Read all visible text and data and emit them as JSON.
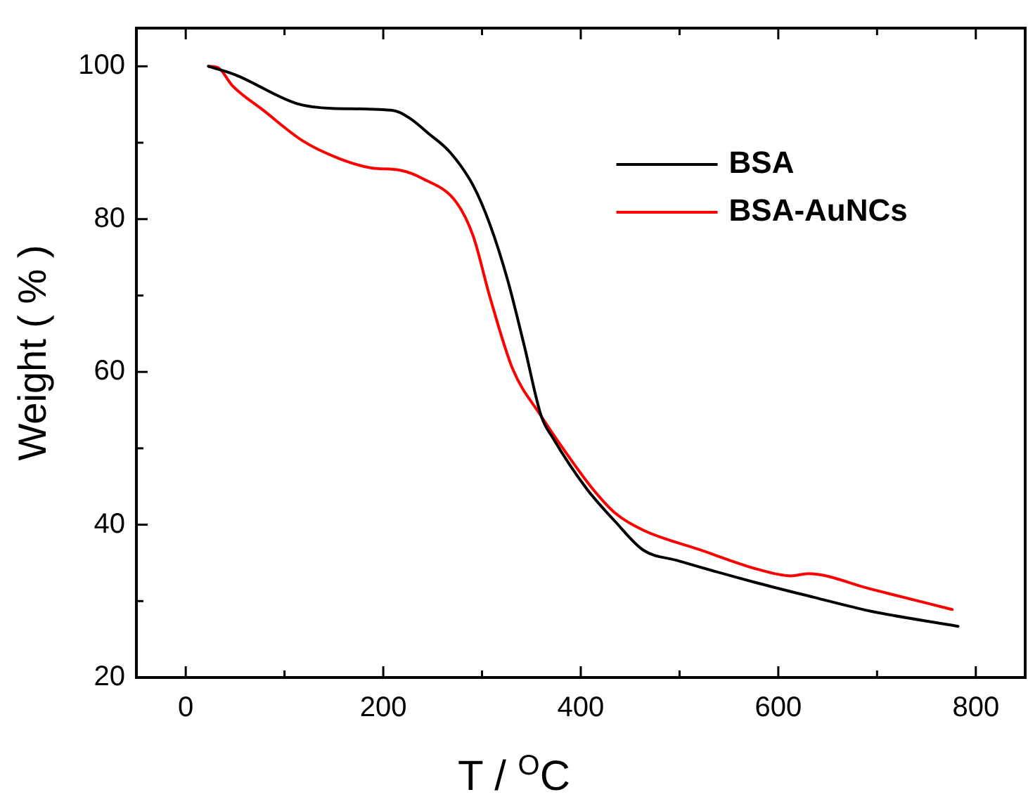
{
  "chart_data": {
    "type": "line",
    "xlabel": "T / $^{O}$C",
    "ylabel": "Weight ( % )",
    "xlim": [
      -50,
      850
    ],
    "xticks": [
      0,
      {
        "value": 100,
        "label": null
      },
      200,
      {
        "value": 300,
        "label": null
      },
      400,
      {
        "value": 500,
        "label": null
      },
      600,
      {
        "value": 700,
        "label": null
      },
      800
    ],
    "ylim": [
      20,
      105
    ],
    "yticks": [
      20,
      {
        "value": 30,
        "label": null
      },
      40,
      {
        "value": 50,
        "label": null
      },
      60,
      {
        "value": 70,
        "label": null
      },
      80,
      {
        "value": 90,
        "label": null
      },
      100
    ],
    "grid": false,
    "legend": "top right",
    "marker": "none",
    "line_style": "solid",
    "series": [
      {
        "name": "BSA",
        "color": "#000000",
        "x": [
          23,
          50,
          113,
          148,
          211,
          228,
          245,
          268,
          291,
          308,
          326,
          343,
          360,
          372,
          406,
          435,
          463,
          498,
          578,
          636,
          693,
          782
        ],
        "values": [
          100,
          98.9,
          95.1,
          94.5,
          94.2,
          93.1,
          91.3,
          88.7,
          84.4,
          79.3,
          72,
          63.3,
          54.2,
          51.3,
          44.7,
          40.4,
          36.7,
          35.3,
          32.4,
          30.5,
          28.7,
          26.7
        ]
      },
      {
        "name": "BSA-AuNCs",
        "color": "#ff0000",
        "x": [
          23,
          33,
          47,
          79,
          119,
          154,
          188,
          217,
          240,
          274,
          291,
          308,
          331,
          360,
          383,
          412,
          435,
          463,
          521,
          578,
          613,
          630,
          693,
          776
        ],
        "values": [
          100,
          99.8,
          97.5,
          94.2,
          90.2,
          88,
          86.7,
          86.4,
          85.3,
          82.2,
          77.8,
          69.8,
          60.4,
          54.2,
          49.8,
          44.7,
          41.5,
          39.3,
          36.7,
          34.2,
          33.3,
          33.6,
          31.6,
          28.9
        ]
      }
    ]
  }
}
